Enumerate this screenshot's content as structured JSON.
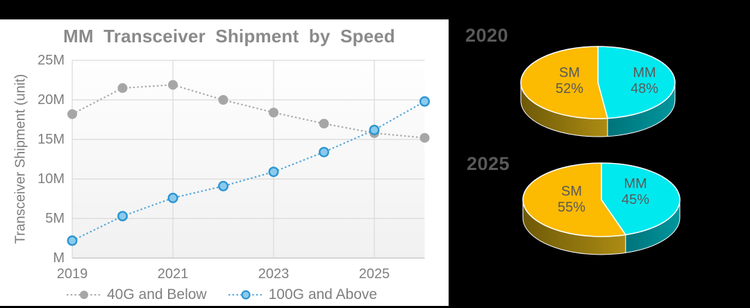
{
  "slide": {
    "background": "#000000",
    "panel_background": "#ffffff"
  },
  "line_chart": {
    "title": "MM Transceiver Shipment by Speed",
    "y_axis_label": "Transceiver Shipment (unit)",
    "y_ticks": [
      "25M",
      "20M",
      "15M",
      "10M",
      "5M",
      "M"
    ],
    "x_ticks": [
      "2019",
      "2021",
      "2023",
      "2025"
    ],
    "legend": [
      {
        "label": "40G and Below"
      },
      {
        "label": "100G and Above"
      }
    ]
  },
  "pies": [
    {
      "title": "2020",
      "slices": [
        {
          "label": "SM",
          "pct": "52%"
        },
        {
          "label": "MM",
          "pct": "48%"
        }
      ]
    },
    {
      "title": "2025",
      "slices": [
        {
          "label": "SM",
          "pct": "55%"
        },
        {
          "label": "MM",
          "pct": "45%"
        }
      ]
    }
  ],
  "colors": {
    "accent_gold": "#fcba00",
    "accent_cyan": "#00e9ee",
    "gold_side_gradient": [
      "#6e5907",
      "#ad8c14"
    ],
    "cyan_side_gradient": [
      "#00737a",
      "#00969d"
    ],
    "grid": "#d9d9d9",
    "axis_line": "#bfbfbf",
    "text_gray": "#7f7f7f"
  },
  "chart_data": [
    {
      "type": "line",
      "title": "MM Transceiver Shipment by Speed",
      "xlabel": "",
      "ylabel": "Transceiver Shipment (unit)",
      "x": [
        2019,
        2020,
        2021,
        2022,
        2023,
        2024,
        2025,
        2026
      ],
      "x_tick_labels": [
        "2019",
        "2021",
        "2023",
        "2025"
      ],
      "y_tick_labels": [
        "M",
        "5M",
        "10M",
        "15M",
        "20M",
        "25M"
      ],
      "ylim": [
        0,
        25
      ],
      "unit": "millions of units (M)",
      "grid": true,
      "legend_position": "bottom",
      "series": [
        {
          "name": "40G and Below",
          "values": [
            18.2,
            21.5,
            21.9,
            20.0,
            18.4,
            17.0,
            15.8,
            15.2
          ],
          "line_color": "#ababab",
          "line_style": "dotted",
          "marker": "filled",
          "marker_fill": "#a6a6a6"
        },
        {
          "name": "100G and Above",
          "values": [
            2.2,
            5.3,
            7.6,
            9.1,
            10.9,
            13.4,
            16.2,
            19.8
          ],
          "line_color": "#56a8dc",
          "line_style": "dotted",
          "marker": "open",
          "marker_fill": "#8ccaec",
          "marker_stroke": "#2b96d1"
        }
      ]
    },
    {
      "type": "pie",
      "title": "2020",
      "labels": [
        "SM",
        "MM"
      ],
      "values": [
        52,
        48
      ],
      "colors": [
        "#fcba00",
        "#00e9ee"
      ],
      "style": "3d",
      "legend_position": "none"
    },
    {
      "type": "pie",
      "title": "2025",
      "labels": [
        "SM",
        "MM"
      ],
      "values": [
        55,
        45
      ],
      "colors": [
        "#fcba00",
        "#00e9ee"
      ],
      "style": "3d",
      "legend_position": "none"
    }
  ]
}
